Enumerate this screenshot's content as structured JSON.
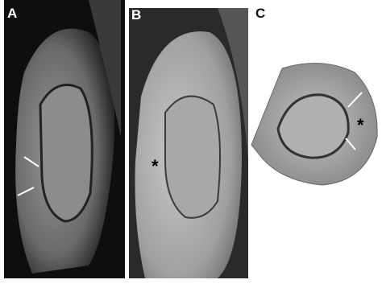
{
  "panels": [
    {
      "label": "A"
    },
    {
      "label": "B",
      "marker": "*"
    },
    {
      "label": "C",
      "marker": "*"
    }
  ]
}
